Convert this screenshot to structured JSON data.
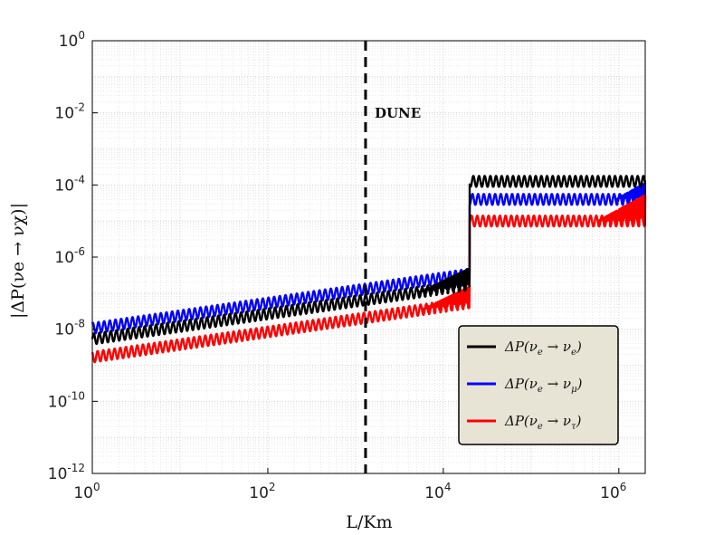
{
  "chart_data": {
    "type": "line",
    "title": "",
    "xlabel": "L/Km",
    "ylabel": "|ΔP(νe → νχ)|",
    "x_scale": "log",
    "y_scale": "log",
    "xlim": [
      1,
      2000000
    ],
    "ylim": [
      1e-12,
      1
    ],
    "grid": true,
    "legend_position": "bottom-right",
    "x_ticks": [
      {
        "base": "10",
        "exp": "0",
        "value": 1
      },
      {
        "base": "10",
        "exp": "2",
        "value": 100
      },
      {
        "base": "10",
        "exp": "4",
        "value": 10000
      },
      {
        "base": "10",
        "exp": "6",
        "value": 1000000
      }
    ],
    "y_ticks": [
      {
        "base": "10",
        "exp": "0",
        "value": 1
      },
      {
        "base": "10",
        "exp": "-2",
        "value": 0.01
      },
      {
        "base": "10",
        "exp": "-4",
        "value": 0.0001
      },
      {
        "base": "10",
        "exp": "-6",
        "value": 1e-06
      },
      {
        "base": "10",
        "exp": "-8",
        "value": 1e-08
      },
      {
        "base": "10",
        "exp": "-10",
        "value": 1e-10
      },
      {
        "base": "10",
        "exp": "-12",
        "value": 1e-12
      }
    ],
    "annotation": {
      "text": "DUNE",
      "x": 1300
    },
    "series": [
      {
        "name": "ΔP(νe → νe)",
        "color": "#000000",
        "amp_exp": [
          -10.5,
          4.8,
          1.45
        ],
        "first_zero": 470,
        "freq_scale": 1.0,
        "valley_cut": -7.4,
        "valley_tail": -3.9
      },
      {
        "name": "ΔP(νe → νμ)",
        "color": "#0000ff",
        "amp_exp": [
          -10.7,
          4.65,
          1.7
        ],
        "first_zero": 440,
        "freq_scale": 1.07,
        "valley_cut": -7.1,
        "valley_tail": -4.4
      },
      {
        "name": "ΔP(νe → ντ)",
        "color": "#ff0000",
        "amp_exp": [
          -11.0,
          4.6,
          1.72
        ],
        "first_zero": 505,
        "freq_scale": 0.93,
        "valley_cut": -7.9,
        "valley_tail": -5.0
      }
    ]
  },
  "legend": {
    "items": [
      {
        "label_main": "ΔP(ν",
        "sub1": "e",
        "arrow": " → ν",
        "sub2": "e",
        "close": ")"
      },
      {
        "label_main": "ΔP(ν",
        "sub1": "e",
        "arrow": " → ν",
        "sub2": "μ",
        "close": ")"
      },
      {
        "label_main": "ΔP(ν",
        "sub1": "e",
        "arrow": " → ν",
        "sub2": "τ",
        "close": ")"
      }
    ]
  }
}
